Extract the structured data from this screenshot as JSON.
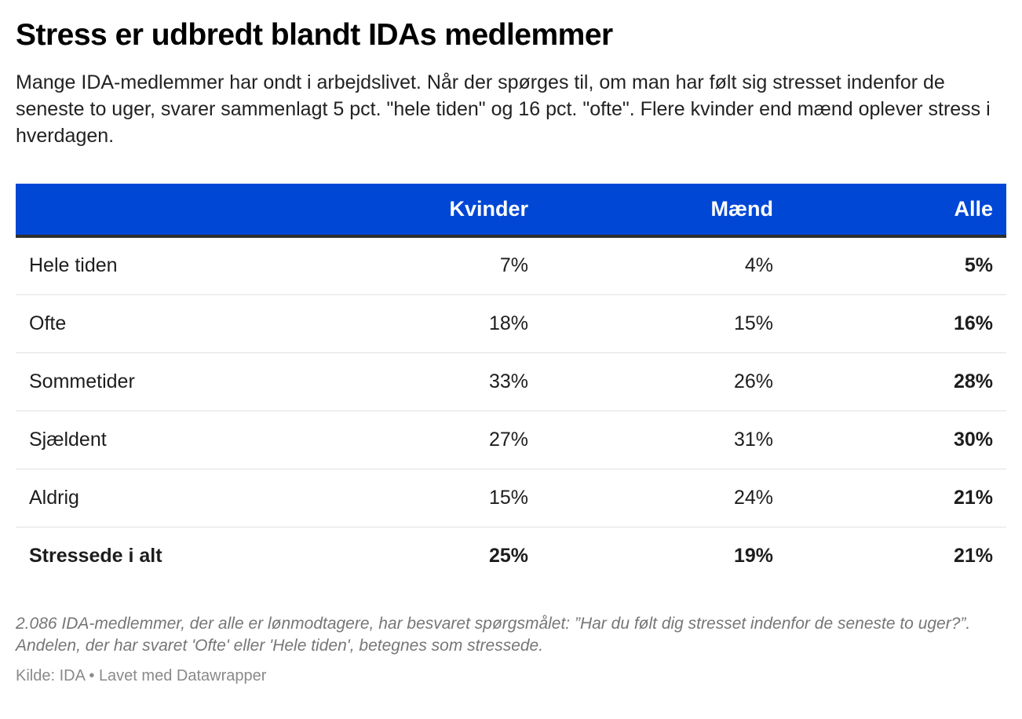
{
  "title": "Stress er udbredt blandt IDAs medlemmer",
  "subtitle": "Mange IDA-medlemmer har ondt i arbejdslivet. Når der spørges til, om man har følt sig stresset indenfor de seneste to uger, svarer sammenlagt 5 pct. \"hele tiden\" og 16 pct. \"ofte\". Flere kvinder end mænd oplever stress i hverdagen.",
  "colors": {
    "header_bg": "#0047d6",
    "header_text": "#ffffff"
  },
  "chart_data": {
    "type": "table",
    "columns": [
      "",
      "Kvinder",
      "Mænd",
      "Alle"
    ],
    "rows": [
      {
        "label": "Hele tiden",
        "kvinder": "7%",
        "maend": "4%",
        "alle": "5%"
      },
      {
        "label": "Ofte",
        "kvinder": "18%",
        "maend": "15%",
        "alle": "16%"
      },
      {
        "label": "Sommetider",
        "kvinder": "33%",
        "maend": "26%",
        "alle": "28%"
      },
      {
        "label": "Sjældent",
        "kvinder": "27%",
        "maend": "31%",
        "alle": "30%"
      },
      {
        "label": "Aldrig",
        "kvinder": "15%",
        "maend": "24%",
        "alle": "21%"
      },
      {
        "label": "Stressede i alt",
        "kvinder": "25%",
        "maend": "19%",
        "alle": "21%"
      }
    ]
  },
  "notes": "2.086 IDA-medlemmer, der alle er lønmodtagere, har besvaret spørgsmålet: ”Har du følt dig stresset indenfor de seneste to uger?”. Andelen, der har svaret 'Ofte' eller 'Hele tiden', betegnes som stressede.",
  "source": "Kilde: IDA • Lavet med Datawrapper"
}
